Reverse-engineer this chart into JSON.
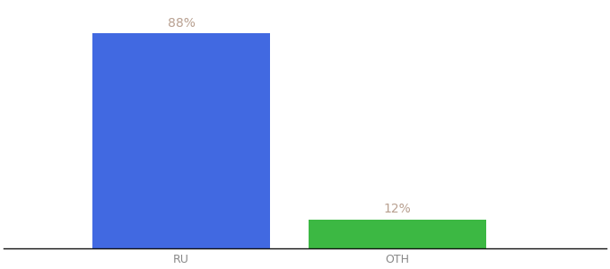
{
  "categories": [
    "RU",
    "OTH"
  ],
  "values": [
    88,
    12
  ],
  "bar_colors": [
    "#4169e1",
    "#3cb843"
  ],
  "label_color": "#b8a090",
  "label_format": [
    "88%",
    "12%"
  ],
  "ylim": [
    0,
    100
  ],
  "background_color": "#ffffff",
  "bar_width": 0.28,
  "label_fontsize": 10,
  "tick_fontsize": 9,
  "tick_color": "#888888",
  "x_positions": [
    0.33,
    0.67
  ],
  "xlim": [
    0.05,
    1.0
  ]
}
